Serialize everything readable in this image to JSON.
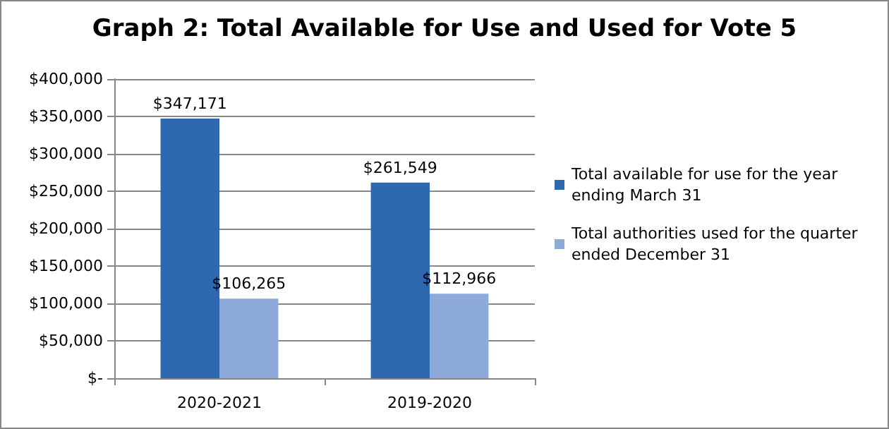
{
  "chart_data": {
    "type": "bar",
    "title": "Graph 2: Total Available for Use and Used for Vote 5",
    "categories": [
      "2020-2021",
      "2019-2020"
    ],
    "series": [
      {
        "name": "Total available for use for the year ending March 31",
        "color": "#2e68b0",
        "values": [
          347171,
          261549
        ],
        "value_labels": [
          "$347,171",
          "$261,549"
        ]
      },
      {
        "name": "Total authorities used for the quarter ended December 31",
        "color": "#8eaadb",
        "values": [
          106265,
          112966
        ],
        "value_labels": [
          "$106,265",
          "$112,966"
        ]
      }
    ],
    "ylim": [
      0,
      400000
    ],
    "yticks": [
      {
        "value": 0,
        "label": "$-"
      },
      {
        "value": 50000,
        "label": "$50,000"
      },
      {
        "value": 100000,
        "label": "$100,000"
      },
      {
        "value": 150000,
        "label": "$150,000"
      },
      {
        "value": 200000,
        "label": "$200,000"
      },
      {
        "value": 250000,
        "label": "$250,000"
      },
      {
        "value": 300000,
        "label": "$300,000"
      },
      {
        "value": 350000,
        "label": "$350,000"
      },
      {
        "value": 400000,
        "label": "$400,000"
      }
    ],
    "grid": "y",
    "legend": "right"
  }
}
